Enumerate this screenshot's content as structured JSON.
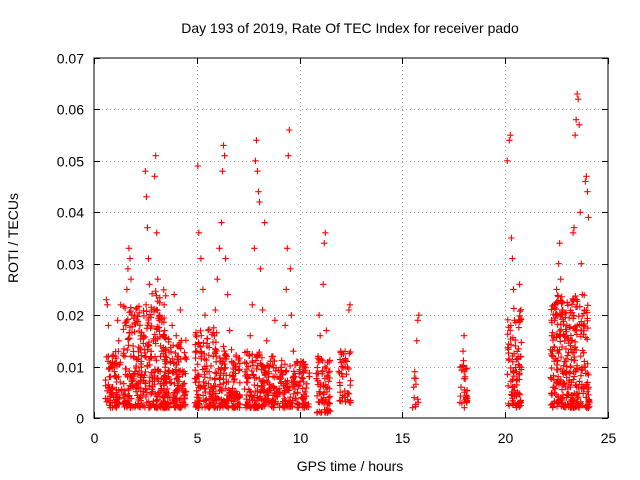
{
  "chart_data": {
    "type": "scatter",
    "title": "Day 193 of 2019, Rate Of TEC Index for receiver pado",
    "xlabel": "GPS time / hours",
    "ylabel": "ROTI / TECUs",
    "xlim": [
      0,
      25
    ],
    "ylim": [
      0,
      0.07
    ],
    "x_ticks": [
      0,
      5,
      10,
      15,
      20,
      25
    ],
    "x_tick_labels": [
      "0",
      "5",
      "10",
      "15",
      "20",
      "25"
    ],
    "y_ticks": [
      0,
      0.01,
      0.02,
      0.03,
      0.04,
      0.05,
      0.06,
      0.07
    ],
    "y_tick_labels": [
      "0",
      "0.01",
      "0.02",
      "0.03",
      "0.04",
      "0.05",
      "0.06",
      "0.07"
    ],
    "grid": true,
    "legend": "none",
    "marker": "plus",
    "color": "#ff0000",
    "series": [
      {
        "values": [
          [
            0.6,
            0.023
          ],
          [
            0.65,
            0.022
          ],
          [
            0.7,
            0.018
          ],
          [
            0.7,
            0.012
          ],
          [
            0.75,
            0.008
          ],
          [
            0.8,
            0.005
          ],
          [
            0.8,
            0.003
          ],
          [
            0.85,
            0.01
          ],
          [
            0.9,
            0.006
          ],
          [
            0.95,
            0.004
          ],
          [
            1.0,
            0.009
          ],
          [
            1.05,
            0.012
          ],
          [
            1.1,
            0.007
          ],
          [
            1.15,
            0.019
          ],
          [
            1.2,
            0.015
          ],
          [
            1.25,
            0.004
          ],
          [
            1.3,
            0.022
          ],
          [
            1.5,
            0.012
          ],
          [
            1.55,
            0.018
          ],
          [
            1.6,
            0.025
          ],
          [
            1.65,
            0.029
          ],
          [
            1.7,
            0.033
          ],
          [
            1.75,
            0.031
          ],
          [
            1.8,
            0.027
          ],
          [
            1.85,
            0.02
          ],
          [
            1.9,
            0.014
          ],
          [
            2.0,
            0.009
          ],
          [
            2.1,
            0.006
          ],
          [
            2.2,
            0.004
          ],
          [
            2.3,
            0.011
          ],
          [
            2.4,
            0.016
          ],
          [
            2.5,
            0.048
          ],
          [
            2.55,
            0.043
          ],
          [
            2.6,
            0.037
          ],
          [
            2.65,
            0.031
          ],
          [
            2.7,
            0.026
          ],
          [
            2.8,
            0.021
          ],
          [
            2.9,
            0.015
          ],
          [
            2.95,
            0.047
          ],
          [
            3.0,
            0.051
          ],
          [
            3.05,
            0.036
          ],
          [
            3.1,
            0.027
          ],
          [
            3.2,
            0.02
          ],
          [
            3.3,
            0.013
          ],
          [
            3.4,
            0.008
          ],
          [
            3.5,
            0.005
          ],
          [
            3.6,
            0.003
          ],
          [
            3.7,
            0.011
          ],
          [
            3.8,
            0.018
          ],
          [
            3.9,
            0.024
          ],
          [
            4.0,
            0.016
          ],
          [
            4.1,
            0.012
          ],
          [
            4.2,
            0.021
          ],
          [
            4.3,
            0.009
          ],
          [
            4.4,
            0.005
          ],
          [
            5.0,
            0.013
          ],
          [
            5.05,
            0.049
          ],
          [
            5.1,
            0.036
          ],
          [
            5.2,
            0.031
          ],
          [
            5.3,
            0.025
          ],
          [
            5.4,
            0.02
          ],
          [
            5.5,
            0.014
          ],
          [
            5.6,
            0.009
          ],
          [
            5.7,
            0.006
          ],
          [
            5.8,
            0.012
          ],
          [
            5.9,
            0.021
          ],
          [
            6.0,
            0.027
          ],
          [
            6.1,
            0.033
          ],
          [
            6.2,
            0.038
          ],
          [
            6.25,
            0.048
          ],
          [
            6.3,
            0.053
          ],
          [
            6.35,
            0.051
          ],
          [
            6.4,
            0.031
          ],
          [
            6.5,
            0.024
          ],
          [
            6.6,
            0.017
          ],
          [
            6.7,
            0.011
          ],
          [
            6.8,
            0.007
          ],
          [
            6.9,
            0.004
          ],
          [
            7.5,
            0.01
          ],
          [
            7.6,
            0.016
          ],
          [
            7.7,
            0.022
          ],
          [
            7.8,
            0.033
          ],
          [
            7.85,
            0.05
          ],
          [
            7.9,
            0.054
          ],
          [
            7.95,
            0.048
          ],
          [
            8.0,
            0.044
          ],
          [
            8.05,
            0.042
          ],
          [
            8.1,
            0.029
          ],
          [
            8.2,
            0.021
          ],
          [
            8.3,
            0.038
          ],
          [
            8.4,
            0.015
          ],
          [
            8.5,
            0.009
          ],
          [
            8.6,
            0.006
          ],
          [
            8.7,
            0.012
          ],
          [
            8.8,
            0.019
          ],
          [
            8.9,
            0.008
          ],
          [
            9.0,
            0.005
          ],
          [
            9.3,
            0.018
          ],
          [
            9.35,
            0.025
          ],
          [
            9.4,
            0.033
          ],
          [
            9.45,
            0.051
          ],
          [
            9.5,
            0.056
          ],
          [
            9.55,
            0.029
          ],
          [
            9.6,
            0.02
          ],
          [
            9.7,
            0.013
          ],
          [
            9.8,
            0.008
          ],
          [
            9.9,
            0.005
          ],
          [
            10.0,
            0.009
          ],
          [
            10.1,
            0.004
          ],
          [
            10.2,
            0.007
          ],
          [
            10.3,
            0.003
          ],
          [
            10.9,
            0.012
          ],
          [
            10.95,
            0.02
          ],
          [
            11.0,
            0.016
          ],
          [
            11.1,
            0.009
          ],
          [
            11.15,
            0.026
          ],
          [
            11.2,
            0.034
          ],
          [
            11.25,
            0.036
          ],
          [
            11.3,
            0.017
          ],
          [
            11.35,
            0.006
          ],
          [
            11.4,
            0.003
          ],
          [
            12.0,
            0.013
          ],
          [
            12.1,
            0.008
          ],
          [
            12.2,
            0.004
          ],
          [
            12.3,
            0.011
          ],
          [
            12.4,
            0.021
          ],
          [
            12.45,
            0.022
          ],
          [
            15.5,
            0.002
          ],
          [
            15.55,
            0.006
          ],
          [
            15.6,
            0.009
          ],
          [
            15.7,
            0.015
          ],
          [
            15.75,
            0.019
          ],
          [
            15.8,
            0.02
          ],
          [
            17.8,
            0.003
          ],
          [
            17.85,
            0.006
          ],
          [
            17.9,
            0.01
          ],
          [
            17.95,
            0.013
          ],
          [
            18.0,
            0.016
          ],
          [
            18.05,
            0.008
          ],
          [
            18.1,
            0.004
          ],
          [
            20.1,
            0.05
          ],
          [
            20.2,
            0.054
          ],
          [
            20.25,
            0.055
          ],
          [
            20.3,
            0.035
          ],
          [
            20.35,
            0.031
          ],
          [
            20.4,
            0.025
          ],
          [
            20.45,
            0.019
          ],
          [
            20.5,
            0.014
          ],
          [
            20.55,
            0.009
          ],
          [
            20.6,
            0.005
          ],
          [
            20.7,
            0.026
          ],
          [
            20.75,
            0.003
          ],
          [
            22.3,
            0.013
          ],
          [
            22.4,
            0.019
          ],
          [
            22.5,
            0.025
          ],
          [
            22.6,
            0.03
          ],
          [
            22.65,
            0.034
          ],
          [
            22.7,
            0.027
          ],
          [
            22.8,
            0.021
          ],
          [
            22.9,
            0.015
          ],
          [
            23.0,
            0.01
          ],
          [
            23.1,
            0.007
          ],
          [
            23.2,
            0.004
          ],
          [
            23.3,
            0.036
          ],
          [
            23.35,
            0.037
          ],
          [
            23.4,
            0.055
          ],
          [
            23.45,
            0.058
          ],
          [
            23.5,
            0.063
          ],
          [
            23.55,
            0.062
          ],
          [
            23.6,
            0.057
          ],
          [
            23.65,
            0.04
          ],
          [
            23.7,
            0.03
          ],
          [
            23.75,
            0.024
          ],
          [
            23.8,
            0.018
          ],
          [
            23.85,
            0.011
          ],
          [
            23.9,
            0.046
          ],
          [
            23.95,
            0.047
          ],
          [
            24.0,
            0.044
          ],
          [
            24.05,
            0.039
          ]
        ]
      }
    ],
    "dense_regions": [
      [
        0.55,
        1.35,
        0.002,
        0.013,
        70
      ],
      [
        1.4,
        2.5,
        0.002,
        0.022,
        150
      ],
      [
        2.5,
        3.5,
        0.002,
        0.025,
        160
      ],
      [
        3.4,
        4.5,
        0.002,
        0.016,
        130
      ],
      [
        4.9,
        6.0,
        0.002,
        0.018,
        140
      ],
      [
        6.0,
        7.1,
        0.002,
        0.014,
        130
      ],
      [
        7.3,
        8.2,
        0.002,
        0.013,
        100
      ],
      [
        8.2,
        9.2,
        0.002,
        0.012,
        100
      ],
      [
        9.2,
        10.5,
        0.002,
        0.011,
        110
      ],
      [
        10.8,
        11.5,
        0.001,
        0.012,
        70
      ],
      [
        11.9,
        12.5,
        0.003,
        0.013,
        40
      ],
      [
        15.5,
        15.8,
        0.002,
        0.008,
        8
      ],
      [
        17.8,
        18.15,
        0.002,
        0.012,
        25
      ],
      [
        20.1,
        20.8,
        0.002,
        0.022,
        90
      ],
      [
        22.2,
        24.1,
        0.002,
        0.024,
        320
      ]
    ]
  }
}
